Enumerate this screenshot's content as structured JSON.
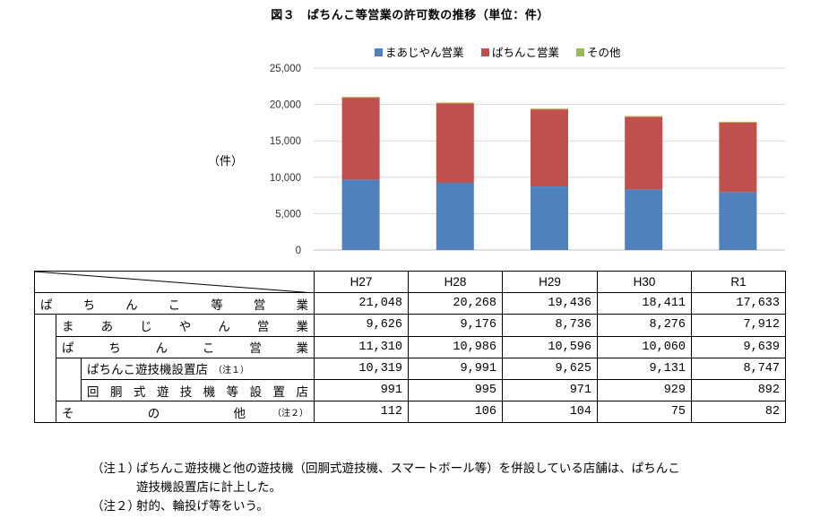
{
  "chart_data": {
    "type": "bar",
    "stacked": true,
    "title": "図３　ぱちんこ等営業の許可数の推移（単位：件）",
    "ylabel": "（件）",
    "categories": [
      "H27",
      "H28",
      "H29",
      "H30",
      "R1"
    ],
    "series": [
      {
        "name": "まあじやん営業",
        "values": [
          9626,
          9176,
          8736,
          8276,
          7912
        ],
        "color": "#4f81bd"
      },
      {
        "name": "ぱちんこ営業",
        "values": [
          11310,
          10986,
          10596,
          10060,
          9639
        ],
        "color": "#c0504d"
      },
      {
        "name": "その他",
        "values": [
          112,
          106,
          104,
          75,
          82
        ],
        "color": "#9bbb59"
      }
    ],
    "ylim": [
      0,
      25000
    ],
    "yticks": [
      0,
      5000,
      10000,
      15000,
      20000,
      25000
    ],
    "ytick_labels": [
      "0",
      "5,000",
      "10,000",
      "15,000",
      "20,000",
      "25,000"
    ],
    "grid": true,
    "legend": "top"
  },
  "table": {
    "headers": [
      "H27",
      "H28",
      "H29",
      "H30",
      "R1"
    ],
    "rows": [
      {
        "label": "ぱちんこ等営業",
        "values": [
          "21,048",
          "20,268",
          "19,436",
          "18,411",
          "17,633"
        ]
      },
      {
        "label": "まあじやん営業",
        "values": [
          "9,626",
          "9,176",
          "8,736",
          "8,276",
          "7,912"
        ]
      },
      {
        "label": "ぱちんこ営業",
        "values": [
          "11,310",
          "10,986",
          "10,596",
          "10,060",
          "9,639"
        ]
      },
      {
        "label": "ぱちんこ遊技機設置店",
        "note": "（注１）",
        "values": [
          "10,319",
          "9,991",
          "9,625",
          "9,131",
          "8,747"
        ]
      },
      {
        "label": "回胴式遊技機等設置店",
        "values": [
          "991",
          "995",
          "971",
          "929",
          "892"
        ]
      },
      {
        "label": "その他",
        "note": "（注２）",
        "values": [
          "112",
          "106",
          "104",
          "75",
          "82"
        ]
      }
    ]
  },
  "notes": [
    {
      "label": "（注１）",
      "lines": [
        "ぱちんこ遊技機と他の遊技機（回胴式遊技機、スマートボール等）を併設している店舗は、ぱちんこ",
        "遊技機設置店に計上した。"
      ]
    },
    {
      "label": "（注２）",
      "lines": [
        "射的、輪投げ等をいう。"
      ]
    }
  ]
}
